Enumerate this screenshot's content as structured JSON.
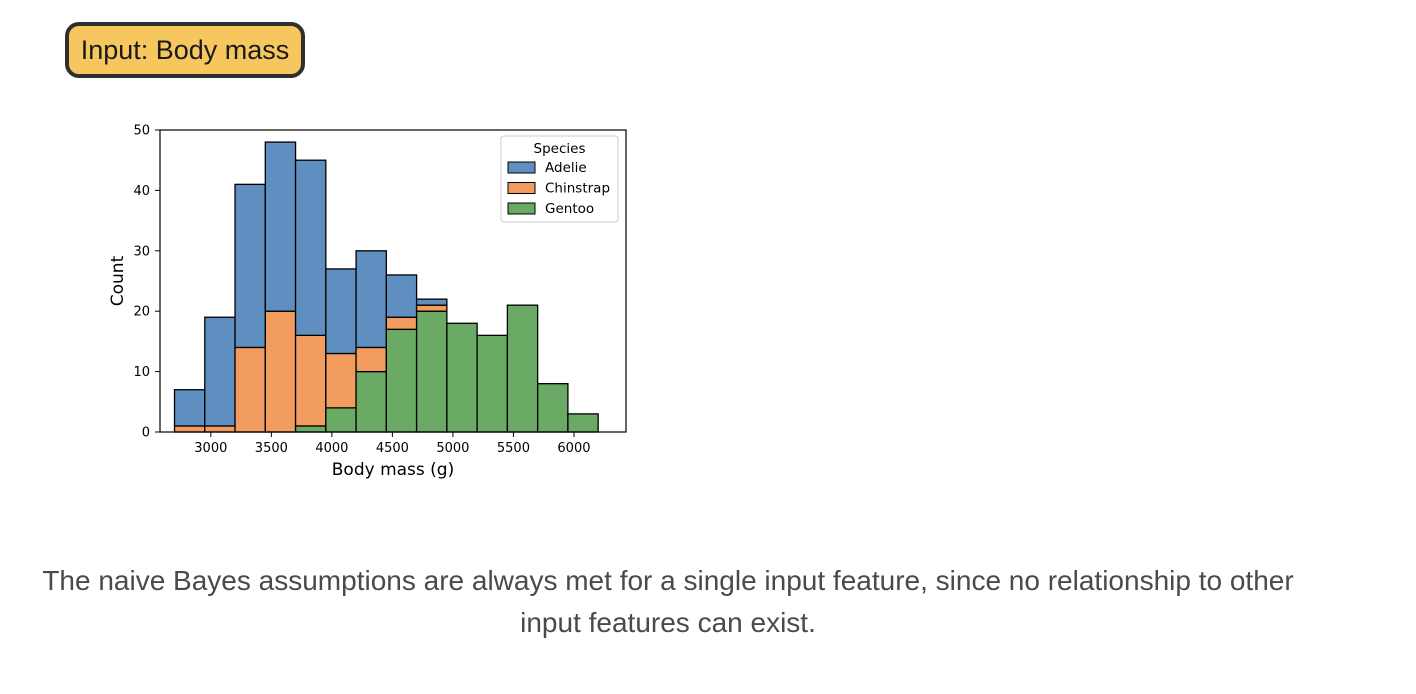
{
  "badge": {
    "label": "Input: Body mass",
    "color": "#f7c75f"
  },
  "caption": "The naive Bayes assumptions are always met for a single input feature, since no relationship to other input features can exist.",
  "chart_data": {
    "type": "bar",
    "stacked": true,
    "xlabel": "Body mass (g)",
    "ylabel": "Count",
    "xlim": [
      2580,
      6430
    ],
    "ylim": [
      0,
      50
    ],
    "xticks": [
      3000,
      3500,
      4000,
      4500,
      5000,
      5500,
      6000
    ],
    "yticks": [
      0,
      10,
      20,
      30,
      40,
      50
    ],
    "grid": false,
    "legend_title": "Species",
    "legend_position": "top-right",
    "bin_edges": [
      2700,
      2950,
      3200,
      3450,
      3700,
      3950,
      4200,
      4450,
      4700,
      4950,
      5200,
      5450,
      5700,
      5950,
      6200
    ],
    "series": [
      {
        "name": "Gentoo",
        "color": "#6aaa64",
        "values": [
          0,
          0,
          0,
          0,
          1,
          4,
          10,
          17,
          20,
          18,
          16,
          21,
          8,
          3
        ]
      },
      {
        "name": "Chinstrap",
        "color": "#f39c5f",
        "values": [
          1,
          1,
          14,
          20,
          15,
          9,
          4,
          2,
          1,
          0,
          0,
          0,
          0,
          0
        ]
      },
      {
        "name": "Adelie",
        "color": "#5f8fc0",
        "values": [
          6,
          18,
          27,
          28,
          29,
          14,
          16,
          7,
          1,
          0,
          0,
          0,
          0,
          0
        ]
      }
    ],
    "legend_order": [
      "Adelie",
      "Chinstrap",
      "Gentoo"
    ]
  }
}
